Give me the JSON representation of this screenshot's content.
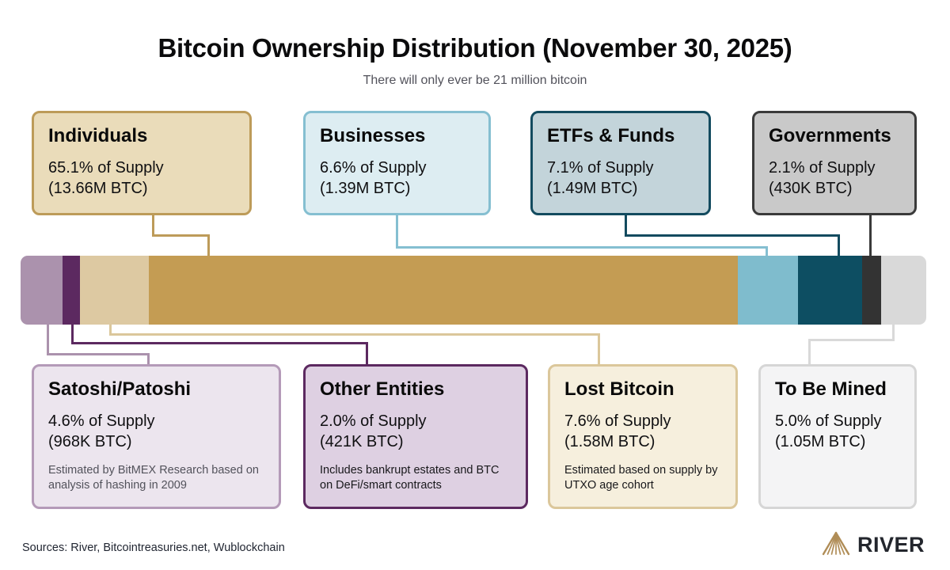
{
  "header": {
    "title": "Bitcoin Ownership Distribution (November 30, 2025)",
    "subtitle": "There will only ever be 21 million bitcoin"
  },
  "cards": [
    {
      "id": "individuals",
      "label": "Individuals",
      "supply": "65.1% of Supply",
      "btc": "(13.66M BTC)",
      "note": "",
      "bg": "#eadcba",
      "border": "#bd9b59"
    },
    {
      "id": "businesses",
      "label": "Businesses",
      "supply": "6.6% of Supply",
      "btc": "(1.39M BTC)",
      "note": "",
      "bg": "#ddedf2",
      "border": "#85bfd1"
    },
    {
      "id": "etfs",
      "label": "ETFs & Funds",
      "supply": "7.1% of Supply",
      "btc": "(1.49M BTC)",
      "note": "",
      "bg": "#c3d4da",
      "border": "#134b5f"
    },
    {
      "id": "governments",
      "label": "Governments",
      "supply": "2.1% of Supply",
      "btc": "(430K BTC)",
      "note": "",
      "bg": "#c9c9c9",
      "border": "#3a3a3a"
    },
    {
      "id": "satoshi",
      "label": "Satoshi/Patoshi",
      "supply": "4.6% of Supply",
      "btc": "(968K BTC)",
      "note": "Estimated by BitMEX Research based on analysis of hashing in 2009",
      "bg": "#ece5ee",
      "border": "#b49ab8"
    },
    {
      "id": "other",
      "label": "Other Entities",
      "supply": "2.0% of Supply",
      "btc": "(421K BTC)",
      "note": "Includes bankrupt estates and BTC on DeFi/smart contracts",
      "bg": "#ded0e2",
      "border": "#5c2960"
    },
    {
      "id": "lost",
      "label": "Lost Bitcoin",
      "supply": "7.6% of Supply",
      "btc": "(1.58M BTC)",
      "note": "Estimated based on supply by UTXO age cohort",
      "bg": "#f6efdd",
      "border": "#dbc79b"
    },
    {
      "id": "tobemined",
      "label": "To Be Mined",
      "supply": "5.0% of Supply",
      "btc": "(1.05M BTC)",
      "note": "",
      "bg": "#f4f4f5",
      "border": "#d6d6d6"
    }
  ],
  "chart_data": {
    "type": "bar",
    "subtype": "horizontal-stacked",
    "title": "Bitcoin Ownership Distribution (November 30, 2025)",
    "subtitle": "There will only ever be 21 million bitcoin",
    "unit": "% of 21M BTC supply",
    "segments": [
      {
        "label": "Satoshi/Patoshi",
        "percent": 4.6,
        "btc": "968K BTC",
        "color": "#ab92ad"
      },
      {
        "label": "Other Entities",
        "percent": 2.0,
        "btc": "421K BTC",
        "color": "#5c2960"
      },
      {
        "label": "Lost Bitcoin",
        "percent": 7.6,
        "btc": "1.58M BTC",
        "color": "#ddc9a2"
      },
      {
        "label": "Individuals",
        "percent": 65.1,
        "btc": "13.66M BTC",
        "color": "#c49c53"
      },
      {
        "label": "Businesses",
        "percent": 6.6,
        "btc": "1.39M BTC",
        "color": "#7fbccd"
      },
      {
        "label": "ETFs & Funds",
        "percent": 7.1,
        "btc": "1.49M BTC",
        "color": "#0d4e62"
      },
      {
        "label": "Governments",
        "percent": 2.1,
        "btc": "430K BTC",
        "color": "#333333"
      },
      {
        "label": "To Be Mined",
        "percent": 5.0,
        "btc": "1.05M BTC",
        "color": "#d9d9d9"
      }
    ]
  },
  "footer": {
    "sources": "Sources: River, Bitcointreasuries.net, Wublockchain",
    "brand": "RIVER"
  },
  "brand_colors": {
    "logo_gold": "#b08d57",
    "logo_text": "#23262d"
  }
}
